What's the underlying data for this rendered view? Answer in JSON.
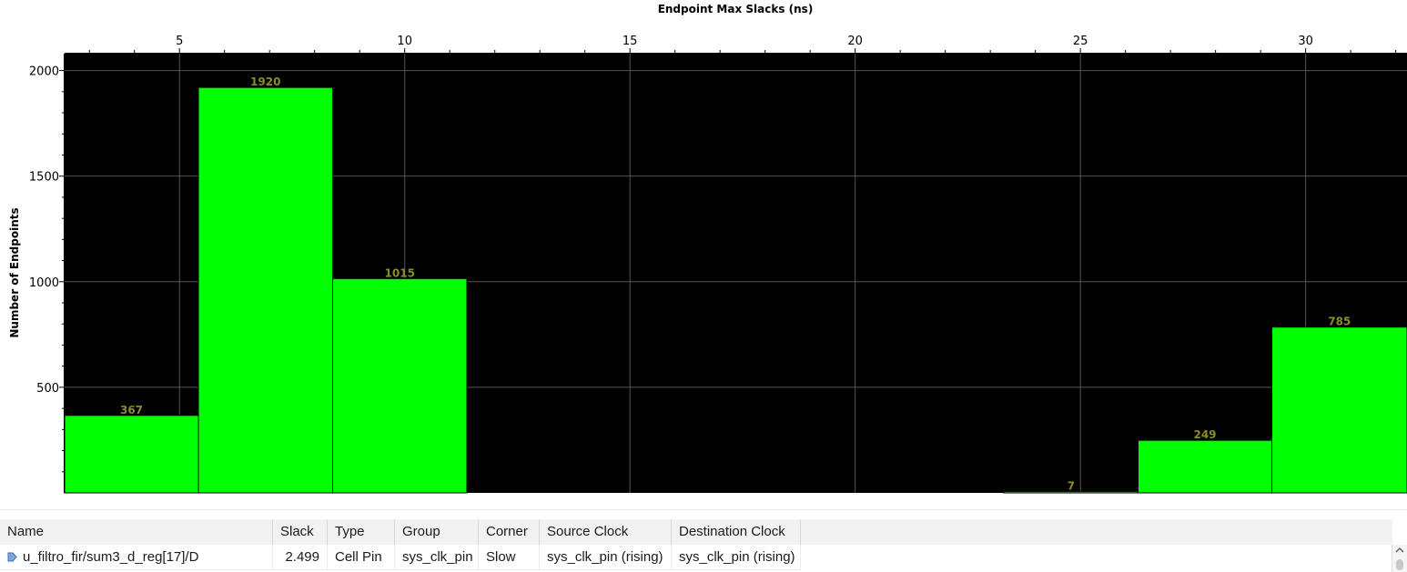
{
  "chart_data": {
    "type": "bar",
    "title": "Endpoint Max Slacks (ns)",
    "xlabel": "Endpoint Max Slacks (ns)",
    "ylabel": "Number of Endpoints",
    "x_ticks": [
      5,
      10,
      15,
      20,
      25,
      30
    ],
    "xlim": [
      2.45,
      32.25
    ],
    "y_ticks": [
      500,
      1000,
      1500,
      2000
    ],
    "ylim": [
      0,
      2080
    ],
    "bins": [
      {
        "x0": 2.45,
        "x1": 5.42,
        "value": 367
      },
      {
        "x0": 5.42,
        "x1": 8.4,
        "value": 1920
      },
      {
        "x0": 8.4,
        "x1": 11.38,
        "value": 1015
      },
      {
        "x0": 23.3,
        "x1": 26.28,
        "value": 7
      },
      {
        "x0": 26.28,
        "x1": 29.25,
        "value": 249
      },
      {
        "x0": 29.25,
        "x1": 32.25,
        "value": 785
      }
    ],
    "grid": true,
    "colors": {
      "bar": "#00ff00",
      "label": "#8c8c2a",
      "background": "#000000",
      "grid": "#555555"
    }
  },
  "table": {
    "columns": [
      "Name",
      "Slack",
      "Type",
      "Group",
      "Corner",
      "Source Clock",
      "Destination Clock"
    ],
    "rows": [
      {
        "name": "u_filtro_fir/sum3_d_reg[17]/D",
        "slack": "2.499",
        "type": "Cell Pin",
        "group": "sys_clk_pin",
        "corner": "Slow",
        "source_clock": "sys_clk_pin (rising)",
        "destination_clock": "sys_clk_pin (rising)",
        "icon": "pin-icon"
      }
    ]
  }
}
